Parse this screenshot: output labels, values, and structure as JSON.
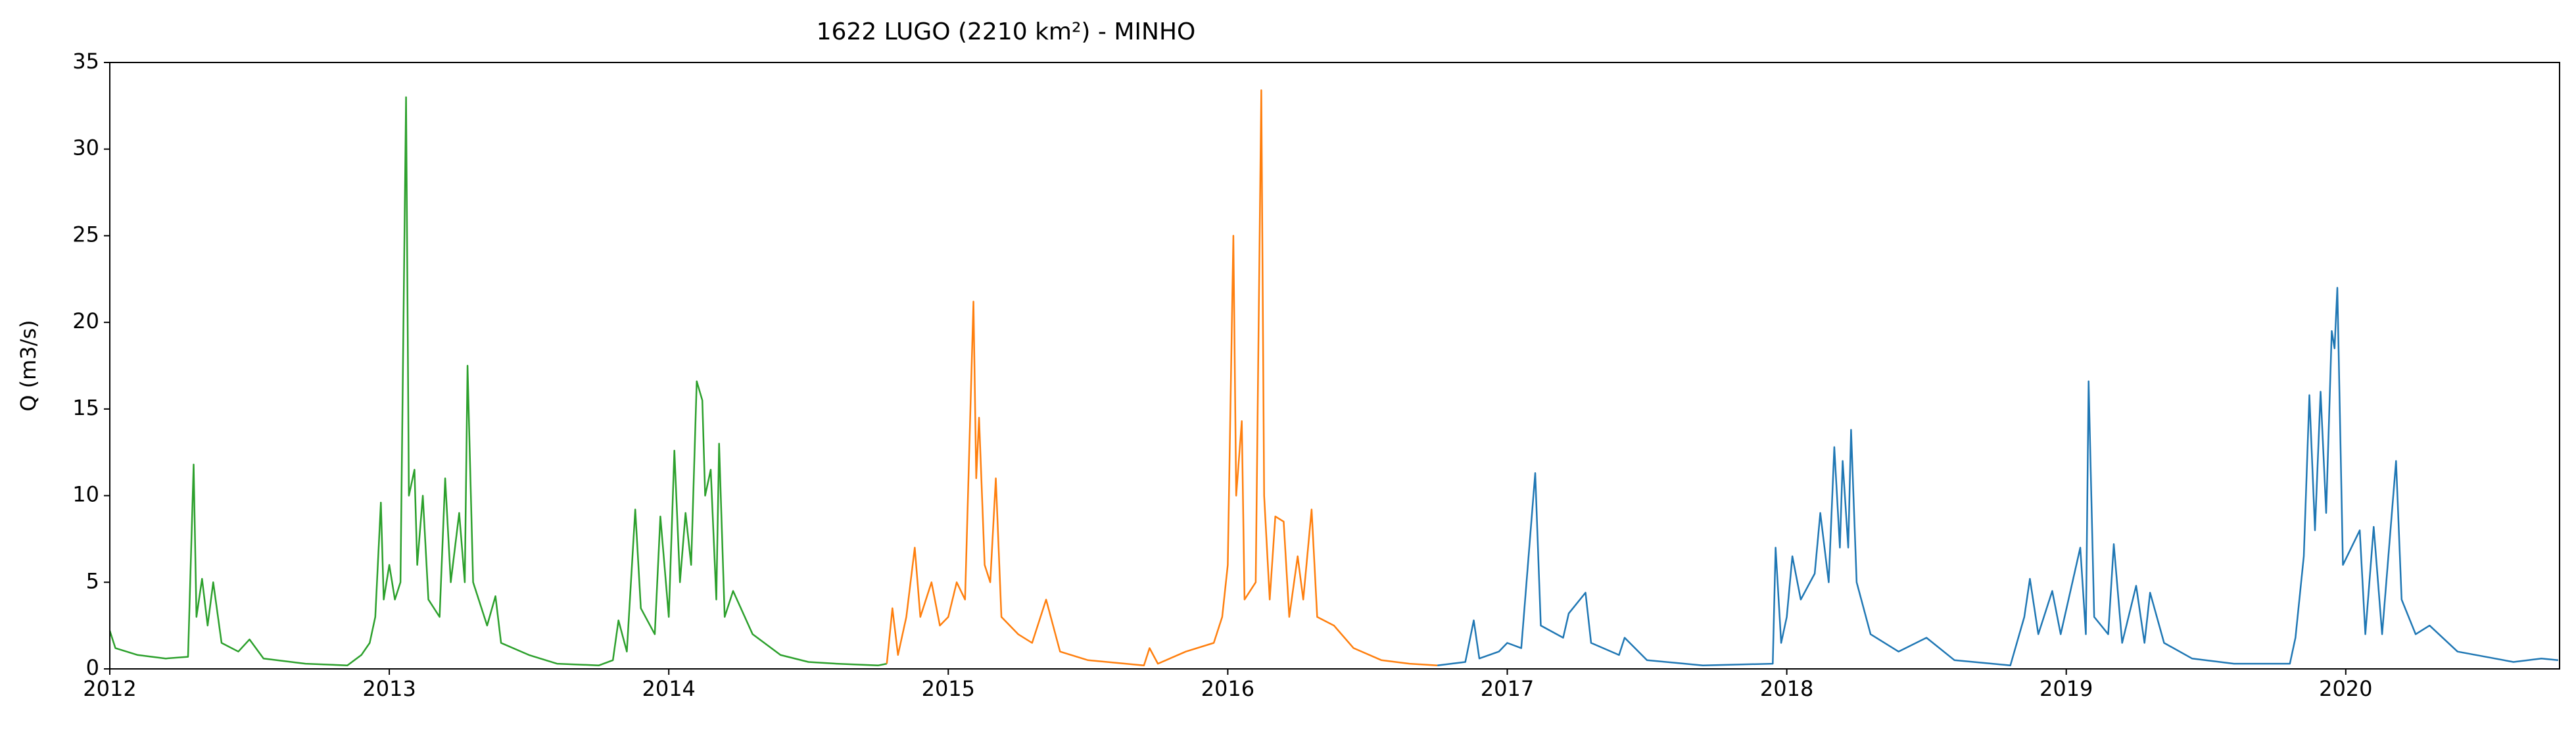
{
  "chart_data": {
    "type": "line",
    "title": "1622 LUGO (2210 km²) - MINHO",
    "y_label": "Q (m3/s)",
    "xlim": [
      2012,
      2020.765
    ],
    "xticks": [
      2012,
      2013,
      2014,
      2015,
      2016,
      2017,
      2018,
      2019,
      2020
    ],
    "ylim": [
      0,
      35
    ],
    "yticks": [
      0,
      5,
      10,
      15,
      20,
      25,
      30,
      35
    ],
    "grid": false,
    "series": [
      {
        "color": "#2ca02c",
        "x": [
          2012.0,
          2012.02,
          2012.1,
          2012.2,
          2012.28,
          2012.3,
          2012.31,
          2012.33,
          2012.35,
          2012.37,
          2012.4,
          2012.46,
          2012.5,
          2012.55,
          2012.7,
          2012.85,
          2012.9,
          2012.93,
          2012.95,
          2012.97,
          2012.98,
          2013.0,
          2013.02,
          2013.04,
          2013.06,
          2013.07,
          2013.09,
          2013.1,
          2013.12,
          2013.14,
          2013.18,
          2013.2,
          2013.22,
          2013.25,
          2013.27,
          2013.28,
          2013.3,
          2013.35,
          2013.38,
          2013.4,
          2013.5,
          2013.6,
          2013.75,
          2013.8,
          2013.82,
          2013.85,
          2013.88,
          2013.9,
          2013.95,
          2013.97,
          2014.0,
          2014.02,
          2014.04,
          2014.06,
          2014.08,
          2014.1,
          2014.12,
          2014.13,
          2014.15,
          2014.17,
          2014.18,
          2014.2,
          2014.23,
          2014.3,
          2014.4,
          2014.5,
          2014.6,
          2014.75,
          2014.78
        ],
        "values": [
          2.2,
          1.2,
          0.8,
          0.6,
          0.7,
          11.8,
          3,
          5.2,
          2.5,
          5,
          1.5,
          1,
          1.7,
          0.6,
          0.3,
          0.2,
          0.8,
          1.5,
          3,
          9.6,
          4,
          6,
          4,
          5,
          33,
          10,
          11.5,
          6,
          10,
          4,
          3,
          11,
          5,
          9,
          5,
          17.5,
          5,
          2.5,
          4.2,
          1.5,
          0.8,
          0.3,
          0.2,
          0.5,
          2.8,
          1,
          9.2,
          3.5,
          2,
          8.8,
          3,
          12.6,
          5,
          9,
          6,
          16.6,
          15.5,
          10,
          11.5,
          4,
          13,
          3,
          4.5,
          2,
          0.8,
          0.4,
          0.3,
          0.2,
          0.3
        ]
      },
      {
        "color": "#ff7f0e",
        "x": [
          2014.78,
          2014.8,
          2014.82,
          2014.85,
          2014.88,
          2014.9,
          2014.94,
          2014.97,
          2015.0,
          2015.03,
          2015.06,
          2015.09,
          2015.1,
          2015.11,
          2015.13,
          2015.15,
          2015.17,
          2015.19,
          2015.25,
          2015.3,
          2015.35,
          2015.4,
          2015.5,
          2015.7,
          2015.72,
          2015.75,
          2015.85,
          2015.95,
          2015.98,
          2016.0,
          2016.02,
          2016.03,
          2016.05,
          2016.06,
          2016.1,
          2016.12,
          2016.13,
          2016.15,
          2016.17,
          2016.2,
          2016.22,
          2016.25,
          2016.27,
          2016.3,
          2016.32,
          2016.38,
          2016.45,
          2016.55,
          2016.65,
          2016.75
        ],
        "values": [
          0.3,
          3.5,
          0.8,
          3,
          7,
          3,
          5,
          2.5,
          3,
          5,
          4,
          21.2,
          11,
          14.5,
          6,
          5,
          11,
          3,
          2,
          1.5,
          4,
          1,
          0.5,
          0.2,
          1.2,
          0.3,
          1,
          1.5,
          3,
          6,
          25,
          10,
          14.3,
          4,
          5,
          33.4,
          10,
          4,
          8.8,
          8.5,
          3,
          6.5,
          4,
          9.2,
          3,
          2.5,
          1.2,
          0.5,
          0.3,
          0.2
        ]
      },
      {
        "color": "#1f77b4",
        "x": [
          2016.75,
          2016.85,
          2016.88,
          2016.9,
          2016.97,
          2017.0,
          2017.05,
          2017.1,
          2017.12,
          2017.2,
          2017.22,
          2017.28,
          2017.3,
          2017.4,
          2017.42,
          2017.5,
          2017.7,
          2017.95,
          2017.96,
          2017.98,
          2018.0,
          2018.02,
          2018.05,
          2018.1,
          2018.12,
          2018.15,
          2018.17,
          2018.19,
          2018.2,
          2018.22,
          2018.23,
          2018.25,
          2018.3,
          2018.4,
          2018.5,
          2018.6,
          2018.8,
          2018.85,
          2018.87,
          2018.9,
          2018.95,
          2018.98,
          2019.05,
          2019.07,
          2019.08,
          2019.1,
          2019.15,
          2019.17,
          2019.2,
          2019.25,
          2019.28,
          2019.3,
          2019.35,
          2019.45,
          2019.6,
          2019.8,
          2019.82,
          2019.85,
          2019.87,
          2019.89,
          2019.91,
          2019.93,
          2019.95,
          2019.96,
          2019.97,
          2019.99,
          2020.05,
          2020.07,
          2020.1,
          2020.13,
          2020.18,
          2020.2,
          2020.25,
          2020.3,
          2020.4,
          2020.6,
          2020.7,
          2020.76
        ],
        "values": [
          0.2,
          0.4,
          2.8,
          0.6,
          1,
          1.5,
          1.2,
          11.3,
          2.5,
          1.8,
          3.2,
          4.4,
          1.5,
          0.8,
          1.8,
          0.5,
          0.2,
          0.3,
          7,
          1.5,
          3,
          6.5,
          4,
          5.5,
          9,
          5,
          12.8,
          7,
          12,
          7,
          13.8,
          5,
          2,
          1,
          1.8,
          0.5,
          0.2,
          3,
          5.2,
          2,
          4.5,
          2,
          7,
          2,
          16.6,
          3,
          2,
          7.2,
          1.5,
          4.8,
          1.5,
          4.4,
          1.5,
          0.6,
          0.3,
          0.3,
          1.8,
          6.5,
          15.8,
          8,
          16,
          9,
          19.5,
          18.5,
          22,
          6,
          8,
          2,
          8.2,
          2,
          12,
          4,
          2,
          2.5,
          1,
          0.4,
          0.6,
          0.5
        ]
      }
    ]
  }
}
